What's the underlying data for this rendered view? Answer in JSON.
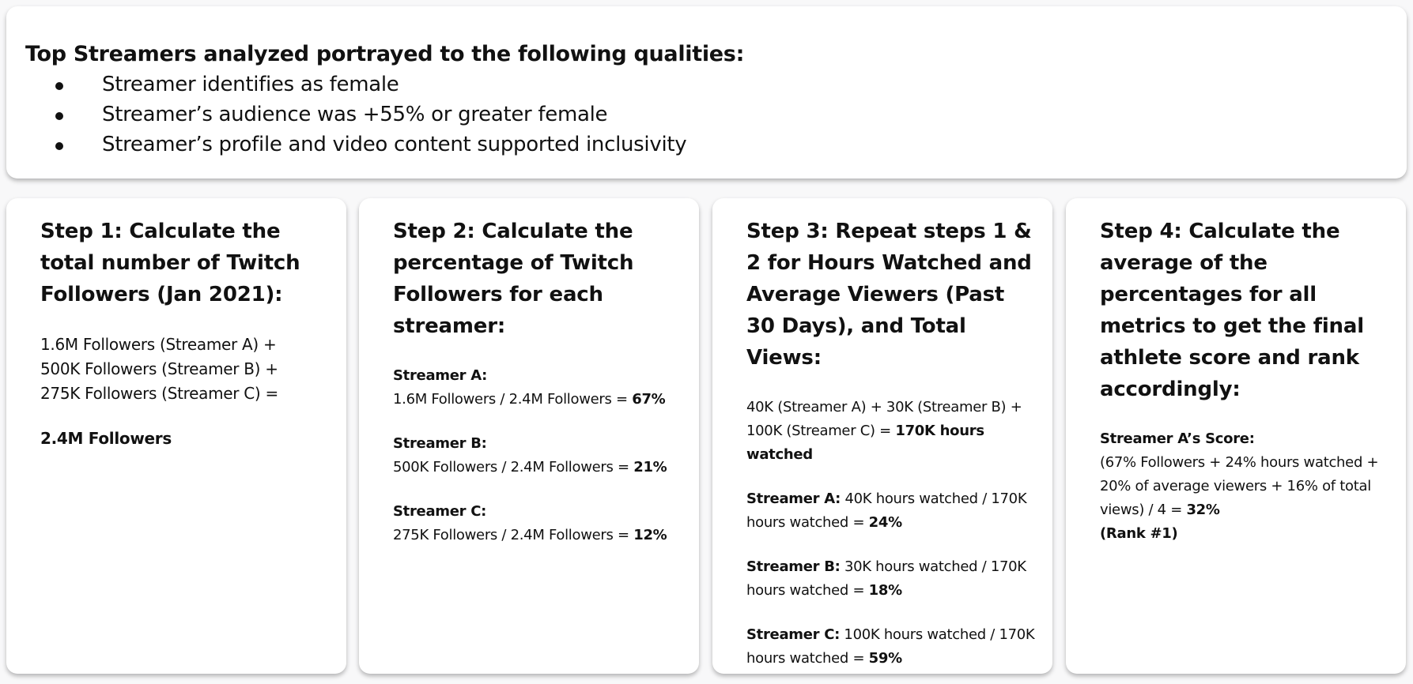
{
  "intro": {
    "heading": "Top Streamers analyzed portrayed to the following qualities:",
    "bullets": [
      "Streamer identifies as female",
      "Streamer’s audience was +55% or greater female",
      "Streamer’s profile and video content supported inclusivity"
    ]
  },
  "steps": [
    {
      "title": "Step 1: Calculate the total number of Twitch Followers (Jan 2021):",
      "lines": [
        "1.6M Followers (Streamer A) +",
        "500K Followers (Streamer B) +",
        "275K Followers  (Streamer C) ="
      ],
      "result": "2.4M Followers"
    },
    {
      "title": "Step 2: Calculate the percentage of Twitch Followers for each streamer:",
      "items": [
        {
          "label": "Streamer A:",
          "formula": "1.6M Followers / 2.4M Followers  = ",
          "result": "67%"
        },
        {
          "label": "Streamer B:",
          "formula": "500K Followers  / 2.4M Followers = ",
          "result": "21%"
        },
        {
          "label": "Streamer C:",
          "formula": "275K Followers / 2.4M Followers  = ",
          "result": "12%"
        }
      ]
    },
    {
      "title": "Step 3: Repeat steps 1 & 2 for Hours Watched and Average Viewers (Past 30 Days), and Total Views:",
      "sum_formula": "40K (Streamer A) + 30K (Streamer B) + 100K (Streamer C) = ",
      "sum_result": "170K hours watched",
      "items": [
        {
          "label": "Streamer A:",
          "formula": " 40K hours watched / 170K hours watched = ",
          "result": "24%"
        },
        {
          "label": "Streamer B:",
          "formula": " 30K hours watched / 170K hours watched = ",
          "result": "18%"
        },
        {
          "label": "Streamer C:",
          "formula": " 100K hours watched / 170K hours watched = ",
          "result": "59%"
        }
      ]
    },
    {
      "title": "Step 4: Calculate the average of the percentages for all metrics to get the final athlete score and rank accordingly:",
      "label": "Streamer A’s Score:",
      "formula": "(67% Followers + 24% hours watched + 20% of average viewers + 16% of total views) / 4 = ",
      "result": "32%",
      "rank": "(Rank #1)"
    }
  ]
}
